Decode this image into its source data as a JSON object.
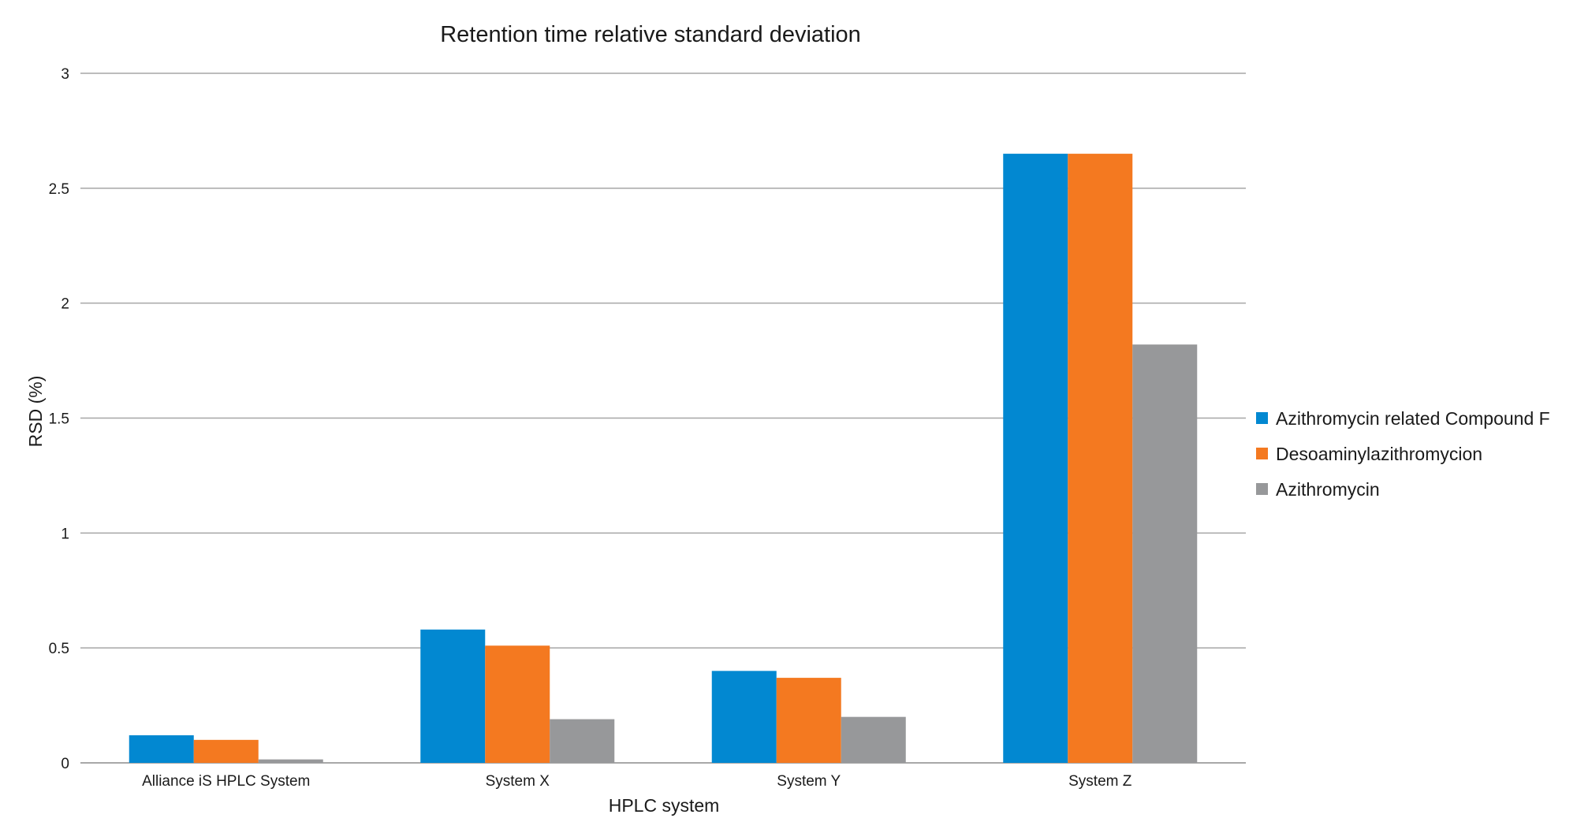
{
  "chart_data": {
    "type": "bar",
    "title": "Retention time relative standard deviation",
    "xlabel": "HPLC system",
    "ylabel": "RSD (%)",
    "ylim": [
      0,
      3
    ],
    "yticks": [
      "0",
      "0.5",
      "1",
      "1.5",
      "2",
      "2.5",
      "3"
    ],
    "ytick_values": [
      0,
      0.5,
      1,
      1.5,
      2,
      2.5,
      3
    ],
    "grid": "horizontal",
    "legend_position": "right",
    "categories": [
      "Alliance iS HPLC System",
      "System X",
      "System Y",
      "System Z"
    ],
    "series": [
      {
        "name": "Azithromycin related Compound F",
        "color": "#0288d1",
        "values": [
          0.12,
          0.58,
          0.4,
          2.65
        ]
      },
      {
        "name": "Desoaminylazithromycion",
        "color": "#f47920",
        "values": [
          0.1,
          0.51,
          0.37,
          2.65
        ]
      },
      {
        "name": "Azithromycin",
        "color": "#97989a",
        "values": [
          0.015,
          0.19,
          0.2,
          1.82
        ]
      }
    ]
  }
}
